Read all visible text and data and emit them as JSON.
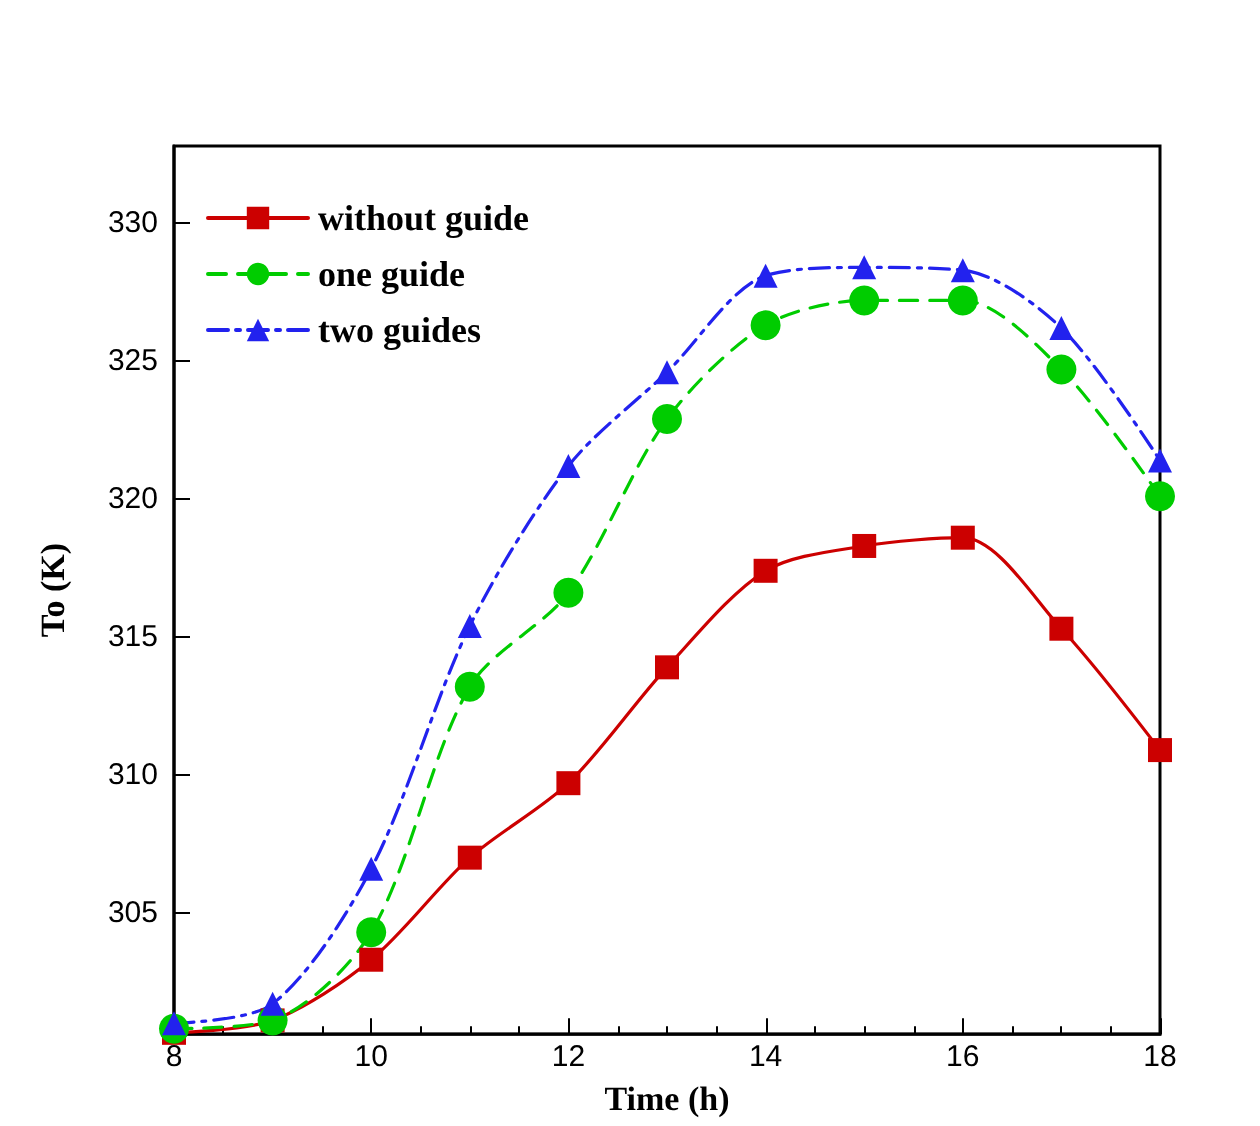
{
  "chart_data": {
    "type": "line",
    "xlabel": "Time (h)",
    "ylabel": "To (K)",
    "x": [
      8,
      9,
      10,
      11,
      12,
      13,
      14,
      15,
      16,
      17,
      18
    ],
    "series": [
      {
        "name": "without guide",
        "color": "#cc0000",
        "marker": "square",
        "line_style": "solid",
        "values": [
          300.65,
          301.1,
          303.3,
          307.0,
          309.7,
          313.9,
          317.4,
          318.3,
          318.6,
          315.3,
          310.9
        ]
      },
      {
        "name": "one guide",
        "color": "#00cc00",
        "marker": "circle",
        "line_style": "dashed",
        "values": [
          300.8,
          301.1,
          304.3,
          313.2,
          316.6,
          322.9,
          326.3,
          327.2,
          327.2,
          324.7,
          320.1
        ]
      },
      {
        "name": "two guides",
        "color": "#2222ee",
        "marker": "triangle",
        "line_style": "dashdot",
        "values": [
          301.0,
          301.7,
          306.6,
          315.4,
          321.2,
          324.6,
          328.1,
          328.4,
          328.3,
          326.2,
          321.4
        ]
      }
    ],
    "xlim": [
      8,
      18
    ],
    "xticks": [
      8,
      10,
      12,
      14,
      16,
      18
    ],
    "ylim": [
      300.6,
      332.8
    ],
    "yticks": [
      305,
      310,
      315,
      320,
      325,
      330
    ],
    "grid": false,
    "legend": "top left"
  }
}
